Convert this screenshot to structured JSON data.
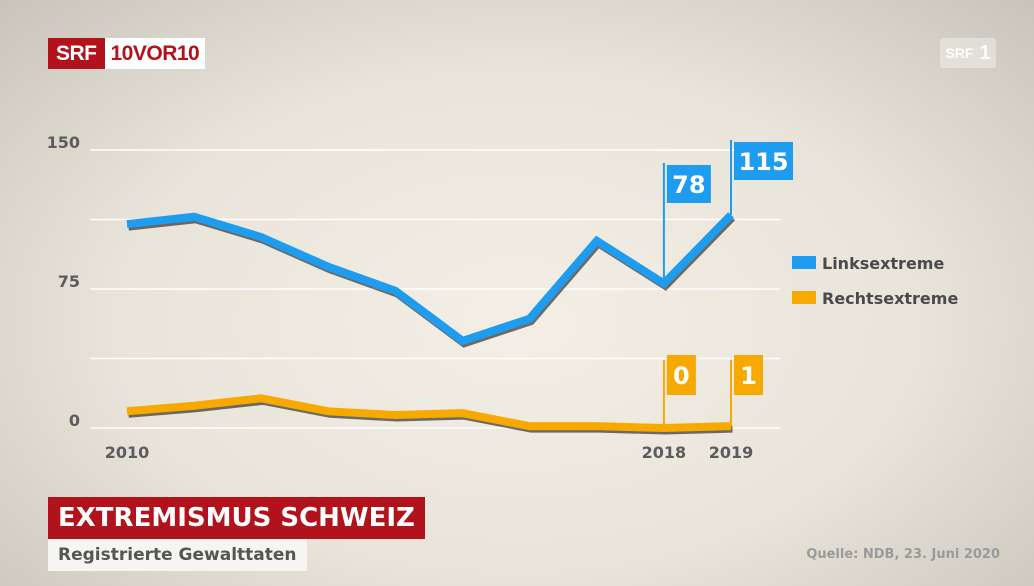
{
  "broadcast": {
    "logo_srf": "SRF",
    "logo_show": "10VOR10",
    "channel_bug_text": "SRF",
    "channel_bug_number": "1"
  },
  "title": "EXTREMISMUS SCHWEIZ",
  "subtitle": "Registrierte Gewalttaten",
  "source": "Quelle: NDB, 23. Juni 2020",
  "colors": {
    "links": "#1e9cf0",
    "rechts": "#f8a900",
    "brand_red": "#b1121b"
  },
  "chart_data": {
    "type": "line",
    "x": [
      2010,
      2011,
      2012,
      2013,
      2014,
      2015,
      2016,
      2017,
      2018,
      2019
    ],
    "x_tick_labels": [
      "2010",
      "2018",
      "2019"
    ],
    "y_ticks": [
      0,
      75,
      150
    ],
    "y_tick_labels": [
      "0",
      "75",
      "150"
    ],
    "ylim": [
      0,
      150
    ],
    "grid": true,
    "legend_position": "right",
    "series": [
      {
        "name": "Linksextreme",
        "color": "#1e9cf0",
        "values": [
          110,
          114,
          103,
          87,
          74,
          47,
          59,
          101,
          78,
          115
        ]
      },
      {
        "name": "Rechtsextreme",
        "color": "#f8a900",
        "values": [
          9,
          12,
          16,
          9,
          7,
          8,
          1,
          1,
          0,
          1
        ]
      }
    ],
    "annotations": [
      {
        "series": 0,
        "x": 2018,
        "label": "78"
      },
      {
        "series": 0,
        "x": 2019,
        "label": "115"
      },
      {
        "series": 1,
        "x": 2018,
        "label": "0"
      },
      {
        "series": 1,
        "x": 2019,
        "label": "1"
      }
    ]
  }
}
